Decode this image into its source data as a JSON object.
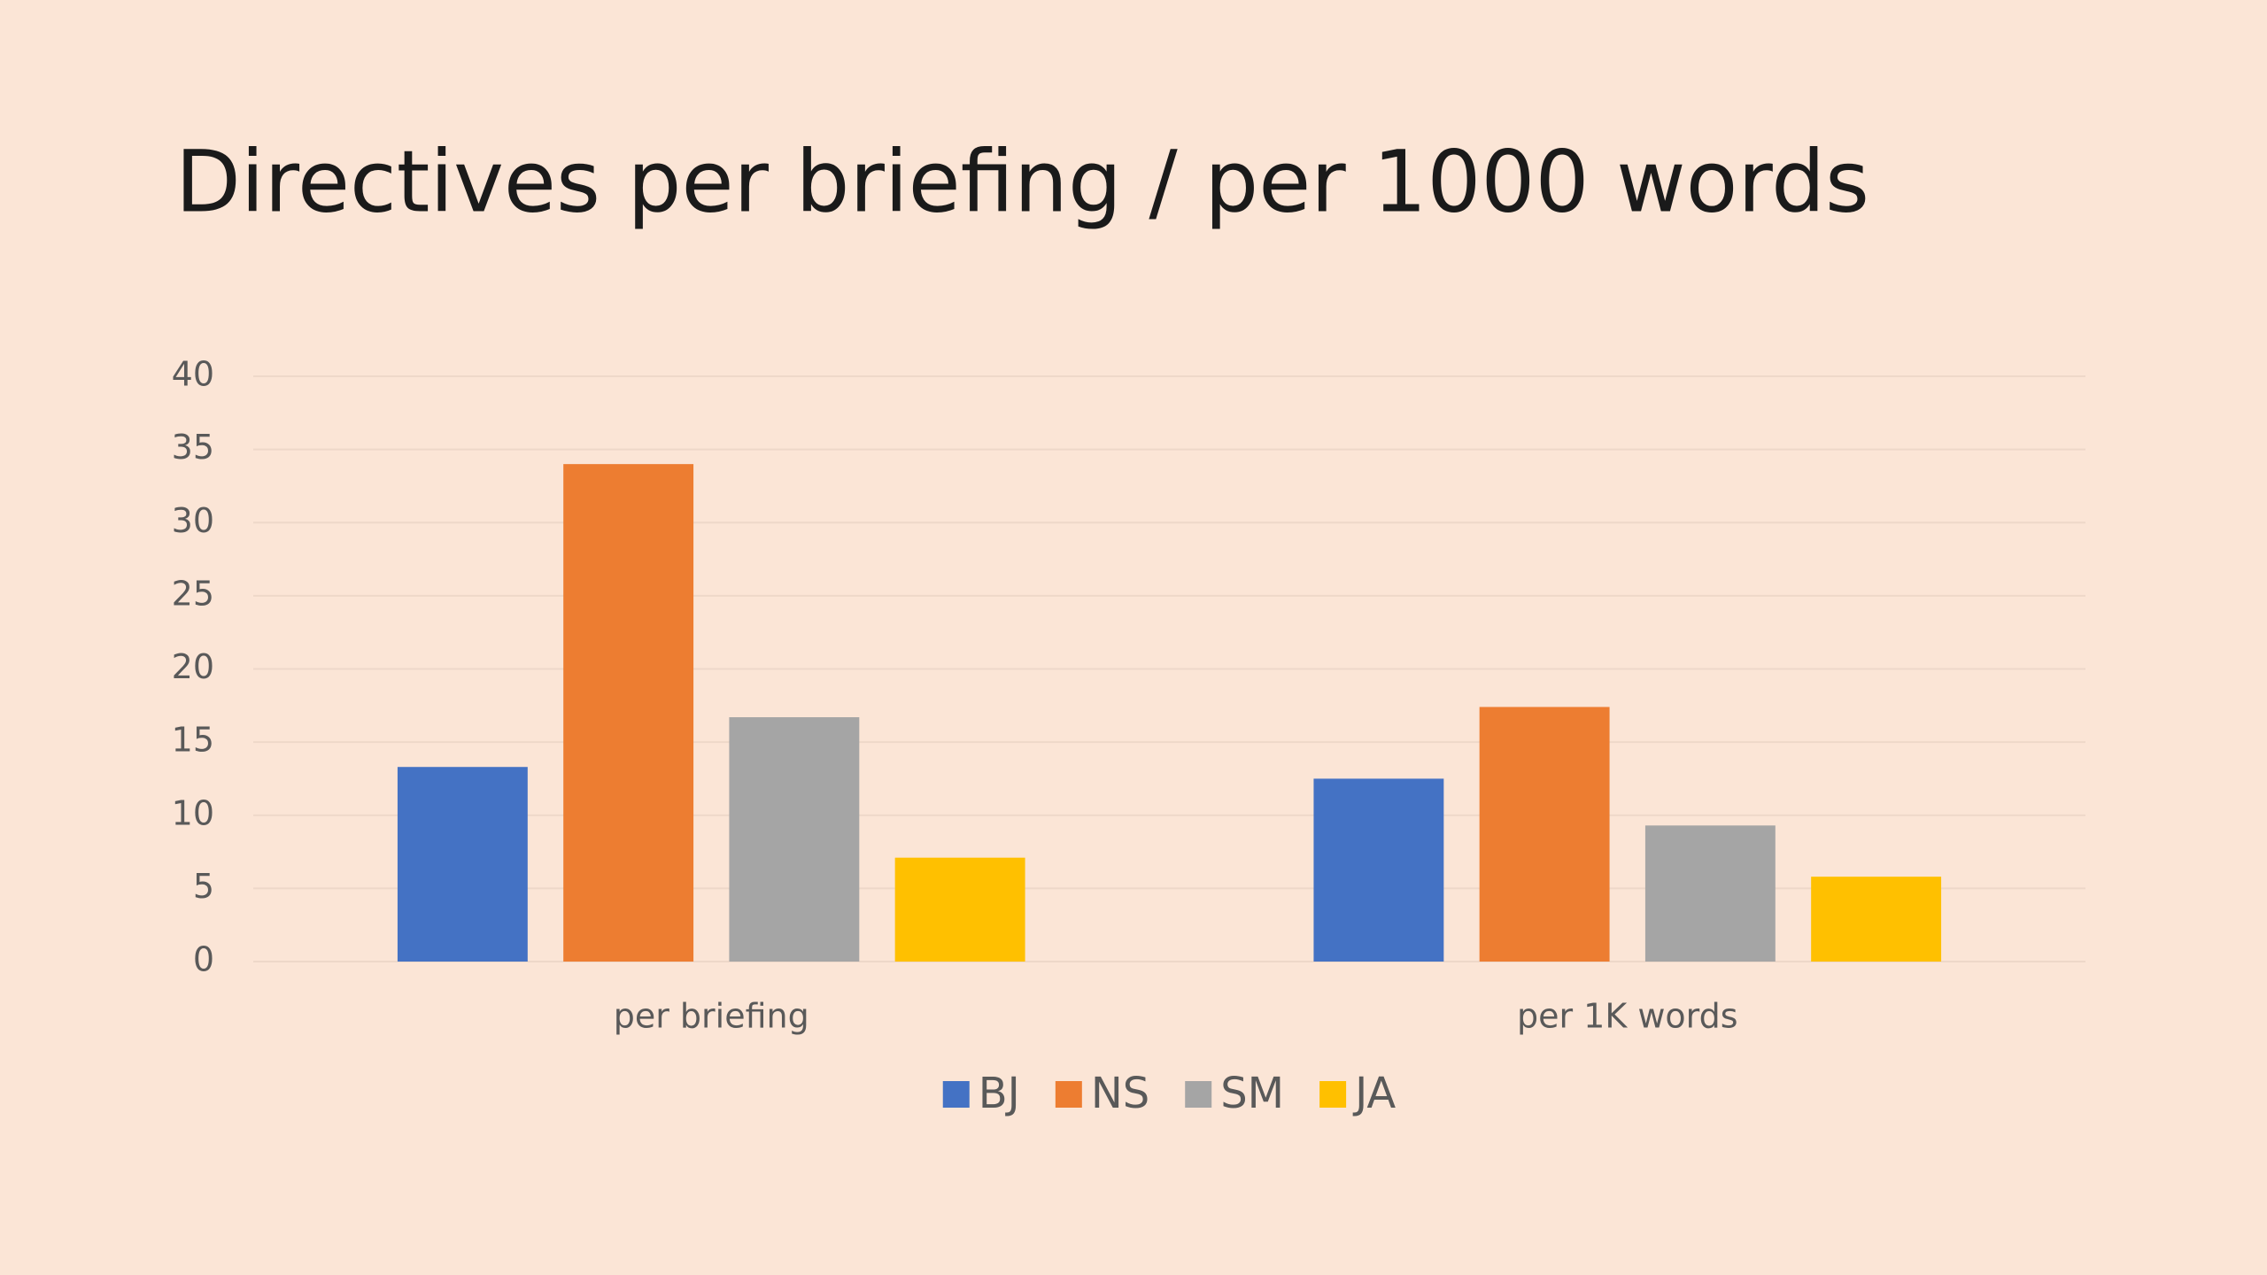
{
  "chart_data": {
    "type": "bar",
    "title": "Directives per briefing / per 1000 words",
    "categories": [
      "per briefing",
      "per 1K words"
    ],
    "series": [
      {
        "name": "BJ",
        "color": "#4472c4",
        "values": [
          13.3,
          12.5
        ]
      },
      {
        "name": "NS",
        "color": "#ed7d31",
        "values": [
          34,
          17.4
        ]
      },
      {
        "name": "SM",
        "color": "#a5a5a5",
        "values": [
          16.7,
          9.3
        ]
      },
      {
        "name": "JA",
        "color": "#ffc000",
        "values": [
          7.1,
          5.8
        ]
      }
    ],
    "ylim": [
      0,
      40
    ],
    "yticks": [
      0,
      5,
      10,
      15,
      20,
      25,
      30,
      35,
      40
    ],
    "grid": true,
    "legend": "bottom"
  }
}
